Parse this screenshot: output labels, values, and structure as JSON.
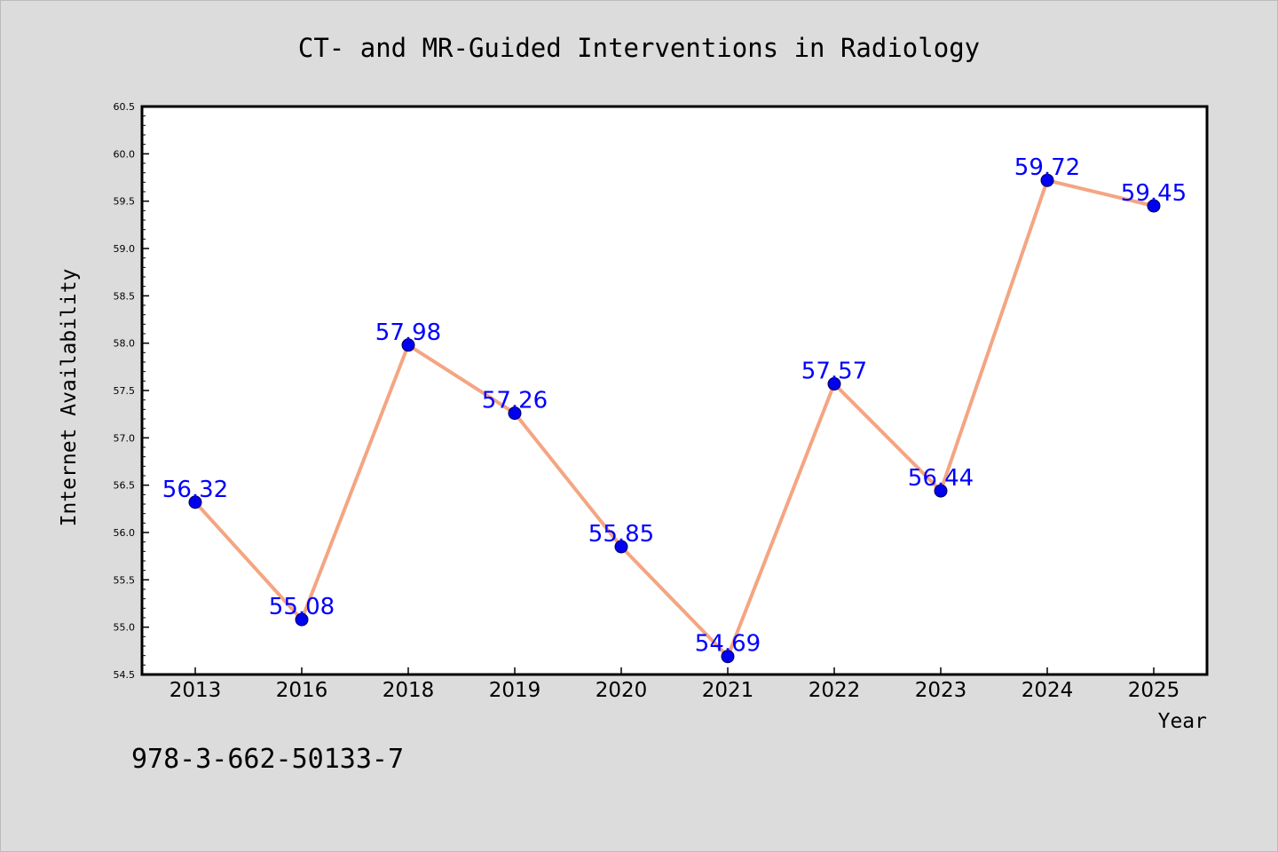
{
  "chart_data": {
    "type": "line",
    "title": "CT- and MR-Guided Interventions in Radiology",
    "xlabel": "Year",
    "ylabel": "Internet Availability",
    "categories": [
      "2013",
      "2016",
      "2018",
      "2019",
      "2020",
      "2021",
      "2022",
      "2023",
      "2024",
      "2025"
    ],
    "series": [
      {
        "values": [
          56.32,
          55.08,
          57.98,
          57.26,
          55.85,
          54.69,
          57.57,
          56.44,
          59.72,
          59.45
        ],
        "labels": [
          "56.32",
          "55.08",
          "57.98",
          "57.26",
          "55.85",
          "54.69",
          "57.57",
          "56.44",
          "59.72",
          "59.45"
        ],
        "line_color": "#f4a582",
        "marker_color": "#0000ee",
        "label_color": "#0000ff"
      }
    ],
    "ylim": [
      54.5,
      60.5
    ],
    "yticks": [
      "54.5",
      "55.0",
      "55.5",
      "56.0",
      "56.5",
      "57.0",
      "57.5",
      "58.0",
      "58.5",
      "59.0",
      "59.5",
      "60.0",
      "60.5"
    ],
    "grid": false,
    "legend": "none"
  },
  "footer_text": "978-3-662-50133-7"
}
